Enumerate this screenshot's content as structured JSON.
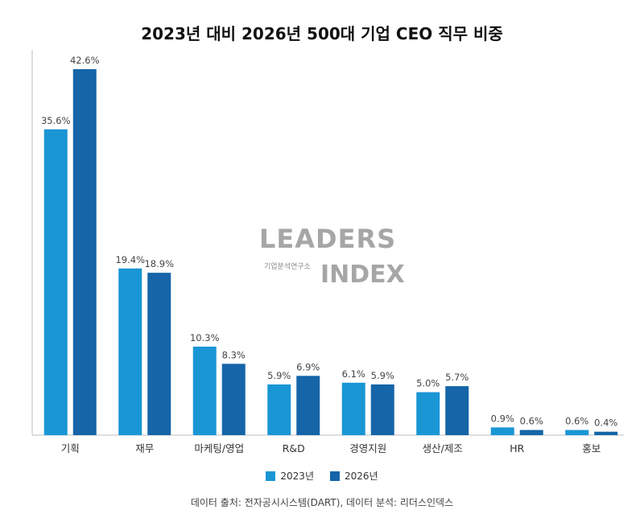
{
  "chart_data": {
    "type": "bar",
    "title": "2023년 대비 2026년 500대 기업 CEO 직무 비중",
    "categories": [
      "기획",
      "재무",
      "마케팅/영업",
      "R&D",
      "경영지원",
      "생산/제조",
      "HR",
      "홍보"
    ],
    "series": [
      {
        "name": "2023년",
        "values": [
          35.6,
          19.4,
          10.3,
          5.9,
          6.1,
          5.0,
          0.9,
          0.6
        ],
        "labels": [
          "35.6%",
          "19.4%",
          "10.3%",
          "5.9%",
          "6.1%",
          "5.0%",
          "0.9%",
          "0.6%"
        ],
        "color": "#1a96d5"
      },
      {
        "name": "2026년",
        "values": [
          42.6,
          18.9,
          8.3,
          6.9,
          5.9,
          5.7,
          0.6,
          0.4
        ],
        "labels": [
          "42.6%",
          "18.9%",
          "8.3%",
          "6.9%",
          "5.9%",
          "5.7%",
          "0.6%",
          "0.4%"
        ],
        "color": "#1565a8"
      }
    ],
    "ylim": [
      0,
      45
    ],
    "grid": false,
    "legend_position": "bottom"
  },
  "source": "데이터 출처: 전자공시시스템(DART), 데이터 분석: 리더스인덱스",
  "watermark": {
    "main": "LEADERS",
    "sub": "기업분석연구소",
    "index": "INDEX"
  }
}
